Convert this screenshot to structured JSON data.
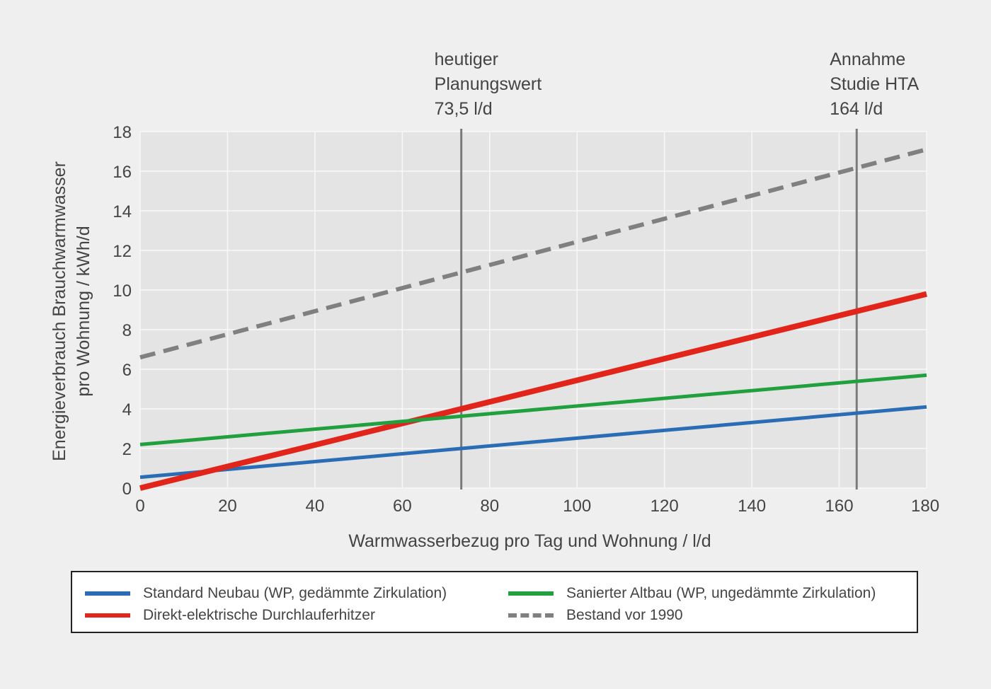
{
  "chart_data": {
    "type": "line",
    "xlabel": "Warmwasserbezug pro Tag und Wohnung / l/d",
    "ylabel_lines": [
      "Energieverbrauch Brauchwarmwasser",
      "pro Wohnung / kWh/d"
    ],
    "xlim": [
      0,
      180
    ],
    "ylim": [
      0,
      18
    ],
    "xticks": [
      0,
      20,
      40,
      60,
      80,
      100,
      120,
      140,
      160,
      180
    ],
    "yticks": [
      0,
      2,
      4,
      6,
      8,
      10,
      12,
      14,
      16,
      18
    ],
    "grid": true,
    "legend_position": "bottom",
    "series": [
      {
        "name": "Standard Neubau (WP, gedämmte Zirkulation)",
        "color": "#2a6db5",
        "dash": false,
        "x": [
          0,
          180
        ],
        "y": [
          0.55,
          4.1
        ]
      },
      {
        "name": "Direkt-elektrische Durchlauferhitzer",
        "color": "#e1251b",
        "dash": false,
        "x": [
          0,
          180
        ],
        "y": [
          0.0,
          9.8
        ]
      },
      {
        "name": "Sanierter Altbau (WP, ungedämmte Zirkulation)",
        "color": "#22a040",
        "dash": false,
        "x": [
          0,
          180
        ],
        "y": [
          2.2,
          5.7
        ]
      },
      {
        "name": "Bestand vor 1990",
        "color": "#808080",
        "dash": true,
        "x": [
          0,
          180
        ],
        "y": [
          6.6,
          17.1
        ]
      }
    ],
    "vlines": [
      {
        "x": 73.5,
        "label_lines": [
          "heutiger",
          "Planungswert",
          "73,5 l/d"
        ]
      },
      {
        "x": 164,
        "label_lines": [
          "Annahme",
          "Studie HTA",
          "164 l/d"
        ]
      }
    ]
  },
  "legend": {
    "items": [
      {
        "label": "Standard Neubau (WP, gedämmte Zirkulation)",
        "color": "#2a6db5",
        "dash": false
      },
      {
        "label": "Sanierter Altbau (WP, ungedämmte Zirkulation)",
        "color": "#22a040",
        "dash": false
      },
      {
        "label": "Direkt-elektrische Durchlauferhitzer",
        "color": "#e1251b",
        "dash": false
      },
      {
        "label": "Bestand vor 1990",
        "color": "#808080",
        "dash": true
      }
    ]
  }
}
